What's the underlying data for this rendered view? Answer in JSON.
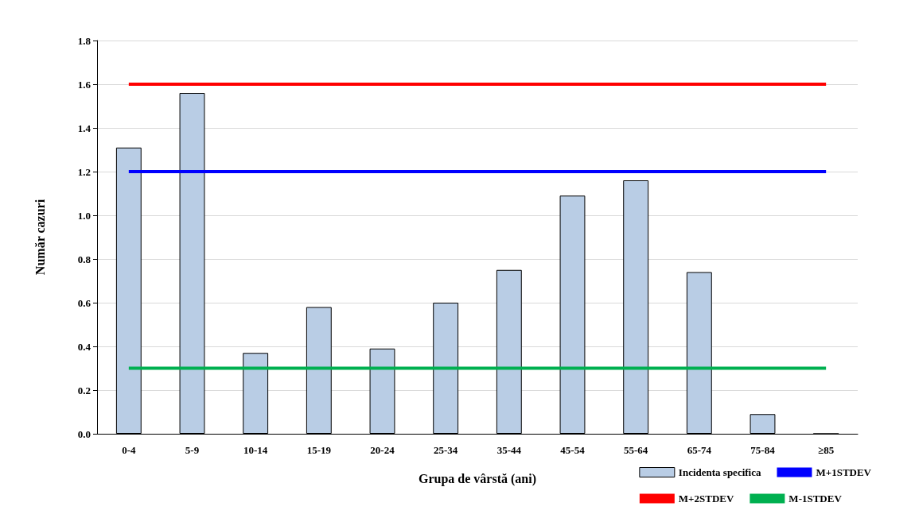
{
  "chart_data": {
    "type": "bar",
    "xlabel": "Grupa de vârstă (ani)",
    "ylabel": "Număr cazuri",
    "categories": [
      "0-4",
      "5-9",
      "10-14",
      "15-19",
      "20-24",
      "25-34",
      "35-44",
      "45-54",
      "55-64",
      "65-74",
      "75-84",
      "≥85"
    ],
    "series": [
      {
        "name": "Incidenta specifica",
        "color": "#b9cde5",
        "values": [
          1.31,
          1.56,
          0.37,
          0.58,
          0.39,
          0.6,
          0.75,
          1.09,
          1.16,
          0.74,
          0.09,
          0
        ]
      },
      {
        "name": "M+1STDEV",
        "type": "line",
        "color": "#0000ff",
        "values": [
          1.2,
          1.2,
          1.2,
          1.2,
          1.2,
          1.2,
          1.2,
          1.2,
          1.2,
          1.2,
          1.2,
          1.2
        ]
      },
      {
        "name": "M+2STDEV",
        "type": "line",
        "color": "#ff0000",
        "values": [
          1.6,
          1.6,
          1.6,
          1.6,
          1.6,
          1.6,
          1.6,
          1.6,
          1.6,
          1.6,
          1.6,
          1.6
        ]
      },
      {
        "name": "M-1STDEV",
        "type": "line",
        "color": "#00b050",
        "values": [
          0.3,
          0.3,
          0.3,
          0.3,
          0.3,
          0.3,
          0.3,
          0.3,
          0.3,
          0.3,
          0.3,
          0.3
        ]
      }
    ],
    "ylim": [
      0,
      1.8
    ],
    "yticks": [
      {
        "value": 0,
        "label": "0.0"
      },
      0.2,
      0.4,
      0.6,
      0.8,
      {
        "value": 1,
        "label": "1.0"
      },
      1.2,
      1.4,
      1.6,
      1.8
    ],
    "grid": "y",
    "legend": "bottom right",
    "marker": "none",
    "line_style": "solid"
  }
}
